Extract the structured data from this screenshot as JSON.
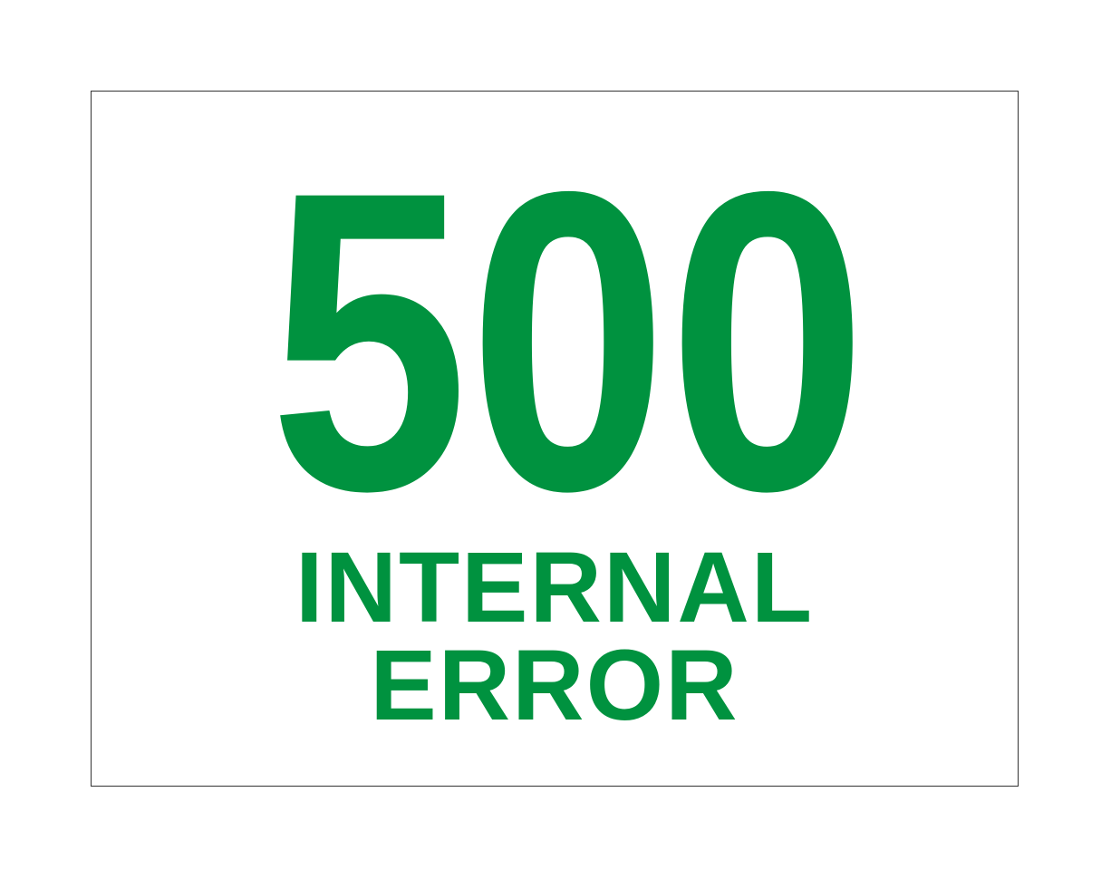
{
  "error": {
    "code": "500",
    "message_line_1": "INTERNAL",
    "message_line_2": "ERROR"
  },
  "colors": {
    "accent": "#00923F",
    "border": "#333333",
    "background": "#FFFFFF"
  }
}
